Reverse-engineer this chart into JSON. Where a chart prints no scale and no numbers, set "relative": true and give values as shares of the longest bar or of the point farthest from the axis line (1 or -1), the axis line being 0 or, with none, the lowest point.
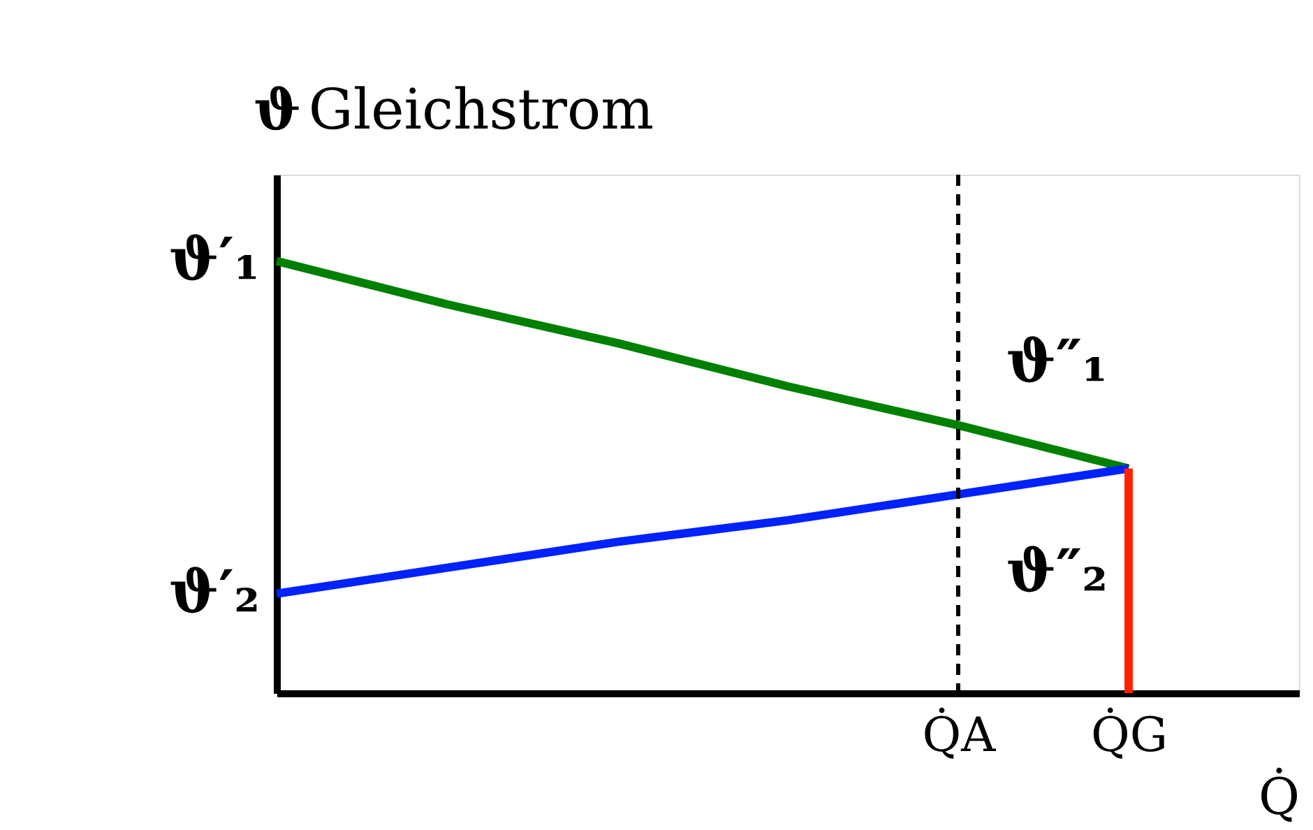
{
  "chart_data": {
    "type": "line",
    "title": "Gleichstrom",
    "xlabel": "Q̇",
    "ylabel": "ϑ",
    "relative": true,
    "categories": [
      null,
      null,
      null,
      null,
      "Q̇A",
      "Q̇G",
      null
    ],
    "series": [
      {
        "color": "#008000",
        "values": [
          1,
          0.9,
          0.81,
          0.71,
          0.62,
          0.52,
          null
        ]
      },
      {
        "color": "#0022ff",
        "values": [
          0.23,
          0.29,
          0.35,
          0.4,
          0.46,
          0.52,
          null
        ]
      },
      {
        "type": "bar",
        "color": "#ff2200",
        "values": [
          null,
          null,
          null,
          null,
          null,
          0.52,
          null
        ]
      }
    ],
    "ref_lines": [
      {
        "axis": "x",
        "value": "Q̇A",
        "color": "#000000",
        "line_style": "dashed"
      }
    ],
    "annotations": [
      "ϑ′₁",
      "ϑ′₂",
      {
        "text": "ϑ″₁",
        "x": "Q̇G",
        "y": 0.52
      },
      {
        "text": "ϑ″₂",
        "x": "Q̇G",
        "y": 0.52
      }
    ],
    "grid": false,
    "legend": false,
    "marker": "none",
    "line_style": "solid"
  }
}
